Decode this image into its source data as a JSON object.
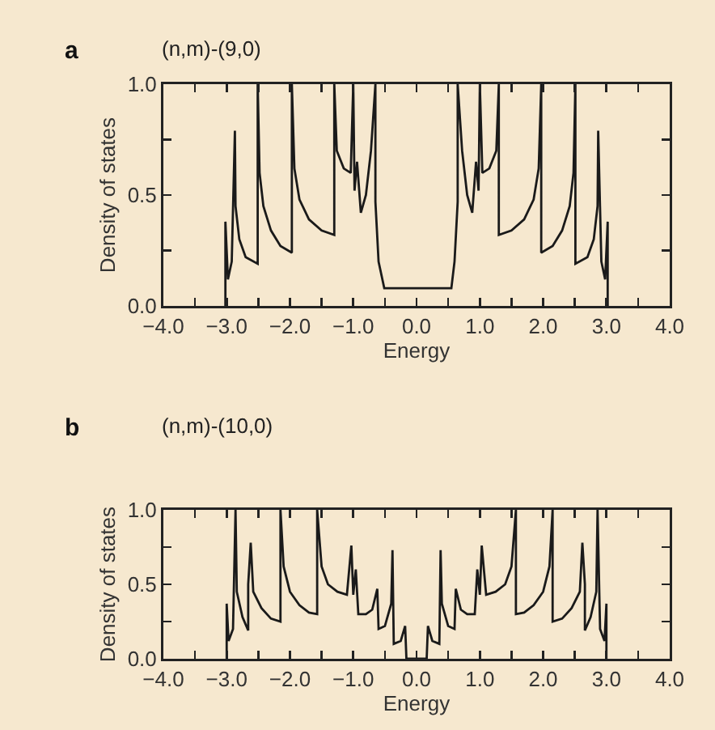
{
  "chart_data": [
    {
      "type": "line",
      "title": "(n,m)-(9,0)",
      "annotations": [
        "a"
      ],
      "xlabel": "Energy",
      "ylabel": "Density of states",
      "xlim": [
        -4,
        4
      ],
      "ylim": [
        0,
        1
      ],
      "xticks": [
        {
          "value": -4,
          "label": "−4.0"
        },
        {
          "value": -3.5,
          "label": null
        },
        {
          "value": -3,
          "label": "−3.0"
        },
        {
          "value": -2.5,
          "label": null
        },
        {
          "value": -2,
          "label": "−2.0"
        },
        {
          "value": -1.5,
          "label": null
        },
        {
          "value": -1,
          "label": "−1.0"
        },
        {
          "value": -0.5,
          "label": null
        },
        {
          "value": 0,
          "label": "0.0"
        },
        {
          "value": 0.5,
          "label": null
        },
        {
          "value": 1,
          "label": "1.0"
        },
        {
          "value": 1.5,
          "label": null
        },
        {
          "value": 2,
          "label": "2.0"
        },
        {
          "value": 2.5,
          "label": null
        },
        {
          "value": 3,
          "label": "3.0"
        },
        {
          "value": 3.5,
          "label": null
        },
        {
          "value": 4,
          "label": "4.0"
        }
      ],
      "yticks": [
        {
          "value": 0,
          "label": "0.0"
        },
        {
          "value": 0.25,
          "label": null
        },
        {
          "value": 0.5,
          "label": "0.5"
        },
        {
          "value": 0.75,
          "label": null
        },
        {
          "value": 1,
          "label": "1.0"
        }
      ],
      "grid": false,
      "marker": "none",
      "line_style": "solid",
      "series": [
        {
          "color": "#1a1a1a",
          "x": [
            -3.02,
            -3.02,
            -2.98,
            -2.92,
            -2.87,
            -2.86,
            -2.8,
            -2.7,
            -2.51,
            -2.51,
            -2.48,
            -2.42,
            -2.3,
            -2.15,
            -1.97,
            -1.97,
            -1.93,
            -1.85,
            -1.7,
            -1.5,
            -1.3,
            -1.3,
            -1.26,
            -1.15,
            -1.04,
            -1.0,
            -0.98,
            -0.94,
            -0.88,
            -0.8,
            -0.72,
            -0.65,
            -0.65,
            -0.6,
            -0.51,
            0.55,
            0.6,
            0.65,
            0.65,
            0.72,
            0.8,
            0.88,
            0.94,
            0.98,
            1.0,
            1.04,
            1.15,
            1.26,
            1.3,
            1.3,
            1.5,
            1.7,
            1.85,
            1.93,
            1.97,
            1.97,
            2.15,
            2.3,
            2.42,
            2.48,
            2.51,
            2.51,
            2.7,
            2.8,
            2.86,
            2.87,
            2.92,
            2.98,
            3.02,
            3.02
          ],
          "values": [
            0,
            0.38,
            0.12,
            0.2,
            0.79,
            0.45,
            0.3,
            0.22,
            0.19,
            1.0,
            0.6,
            0.45,
            0.34,
            0.27,
            0.24,
            1.0,
            0.62,
            0.48,
            0.39,
            0.34,
            0.32,
            1.0,
            0.7,
            0.62,
            0.6,
            1.0,
            0.52,
            0.65,
            0.42,
            0.5,
            0.7,
            1.0,
            0.47,
            0.2,
            0.08,
            0.08,
            0.2,
            0.47,
            1.0,
            0.7,
            0.5,
            0.42,
            0.65,
            0.52,
            1.0,
            0.6,
            0.62,
            0.7,
            1.0,
            0.32,
            0.34,
            0.39,
            0.48,
            0.62,
            1.0,
            0.24,
            0.27,
            0.34,
            0.45,
            0.6,
            1.0,
            0.19,
            0.22,
            0.3,
            0.45,
            0.79,
            0.2,
            0.12,
            0.38,
            0
          ]
        }
      ]
    },
    {
      "type": "line",
      "title": "(n,m)-(10,0)",
      "annotations": [
        "b"
      ],
      "xlabel": "Energy",
      "ylabel": "Density of states",
      "xlim": [
        -4,
        4
      ],
      "ylim": [
        0,
        1
      ],
      "xticks": [
        {
          "value": -4,
          "label": "−4.0"
        },
        {
          "value": -3.5,
          "label": null
        },
        {
          "value": -3,
          "label": "−3.0"
        },
        {
          "value": -2.5,
          "label": null
        },
        {
          "value": -2,
          "label": "−2.0"
        },
        {
          "value": -1.5,
          "label": null
        },
        {
          "value": -1,
          "label": "−1.0"
        },
        {
          "value": -0.5,
          "label": null
        },
        {
          "value": 0,
          "label": "0.0"
        },
        {
          "value": 0.5,
          "label": null
        },
        {
          "value": 1,
          "label": "1.0"
        },
        {
          "value": 1.5,
          "label": null
        },
        {
          "value": 2,
          "label": "2.0"
        },
        {
          "value": 2.5,
          "label": null
        },
        {
          "value": 3,
          "label": "3.0"
        },
        {
          "value": 3.5,
          "label": null
        },
        {
          "value": 4,
          "label": "4.0"
        }
      ],
      "yticks": [
        {
          "value": 0,
          "label": "0.0"
        },
        {
          "value": 0.25,
          "label": null
        },
        {
          "value": 0.5,
          "label": "0.5"
        },
        {
          "value": 0.75,
          "label": null
        },
        {
          "value": 1,
          "label": "1.0"
        }
      ],
      "grid": false,
      "marker": "none",
      "line_style": "solid",
      "series": [
        {
          "color": "#1a1a1a",
          "x": [
            -3.0,
            -3.0,
            -2.97,
            -2.9,
            -2.86,
            -2.84,
            -2.75,
            -2.66,
            -2.66,
            -2.62,
            -2.58,
            -2.45,
            -2.3,
            -2.15,
            -2.15,
            -2.1,
            -2.0,
            -1.85,
            -1.7,
            -1.57,
            -1.57,
            -1.5,
            -1.4,
            -1.25,
            -1.1,
            -1.03,
            -1.0,
            -0.96,
            -0.92,
            -0.8,
            -0.7,
            -0.62,
            -0.6,
            -0.5,
            -0.4,
            -0.38,
            -0.36,
            -0.25,
            -0.18,
            -0.16,
            0.16,
            0.18,
            0.25,
            0.36,
            0.38,
            0.4,
            0.5,
            0.6,
            0.62,
            0.7,
            0.8,
            0.92,
            0.96,
            1.0,
            1.03,
            1.1,
            1.25,
            1.4,
            1.5,
            1.57,
            1.57,
            1.7,
            1.85,
            2.0,
            2.1,
            2.15,
            2.15,
            2.3,
            2.45,
            2.58,
            2.62,
            2.66,
            2.66,
            2.75,
            2.84,
            2.86,
            2.9,
            2.97,
            3.0,
            3.0
          ],
          "values": [
            0,
            0.37,
            0.12,
            0.2,
            1.0,
            0.45,
            0.28,
            0.19,
            0.5,
            0.78,
            0.45,
            0.34,
            0.27,
            0.25,
            1.0,
            0.62,
            0.45,
            0.36,
            0.31,
            0.3,
            1.0,
            0.62,
            0.5,
            0.45,
            0.43,
            0.76,
            0.43,
            0.6,
            0.3,
            0.3,
            0.33,
            0.47,
            0.2,
            0.22,
            0.37,
            0.73,
            0.1,
            0.12,
            0.22,
            0,
            0,
            0.22,
            0.12,
            0.1,
            0.73,
            0.37,
            0.22,
            0.2,
            0.47,
            0.33,
            0.3,
            0.3,
            0.6,
            0.43,
            0.76,
            0.43,
            0.45,
            0.5,
            0.62,
            1.0,
            0.3,
            0.31,
            0.36,
            0.45,
            0.62,
            1.0,
            0.25,
            0.27,
            0.34,
            0.45,
            0.78,
            0.5,
            0.19,
            0.28,
            0.45,
            1.0,
            0.2,
            0.12,
            0.37,
            0
          ]
        }
      ]
    }
  ]
}
